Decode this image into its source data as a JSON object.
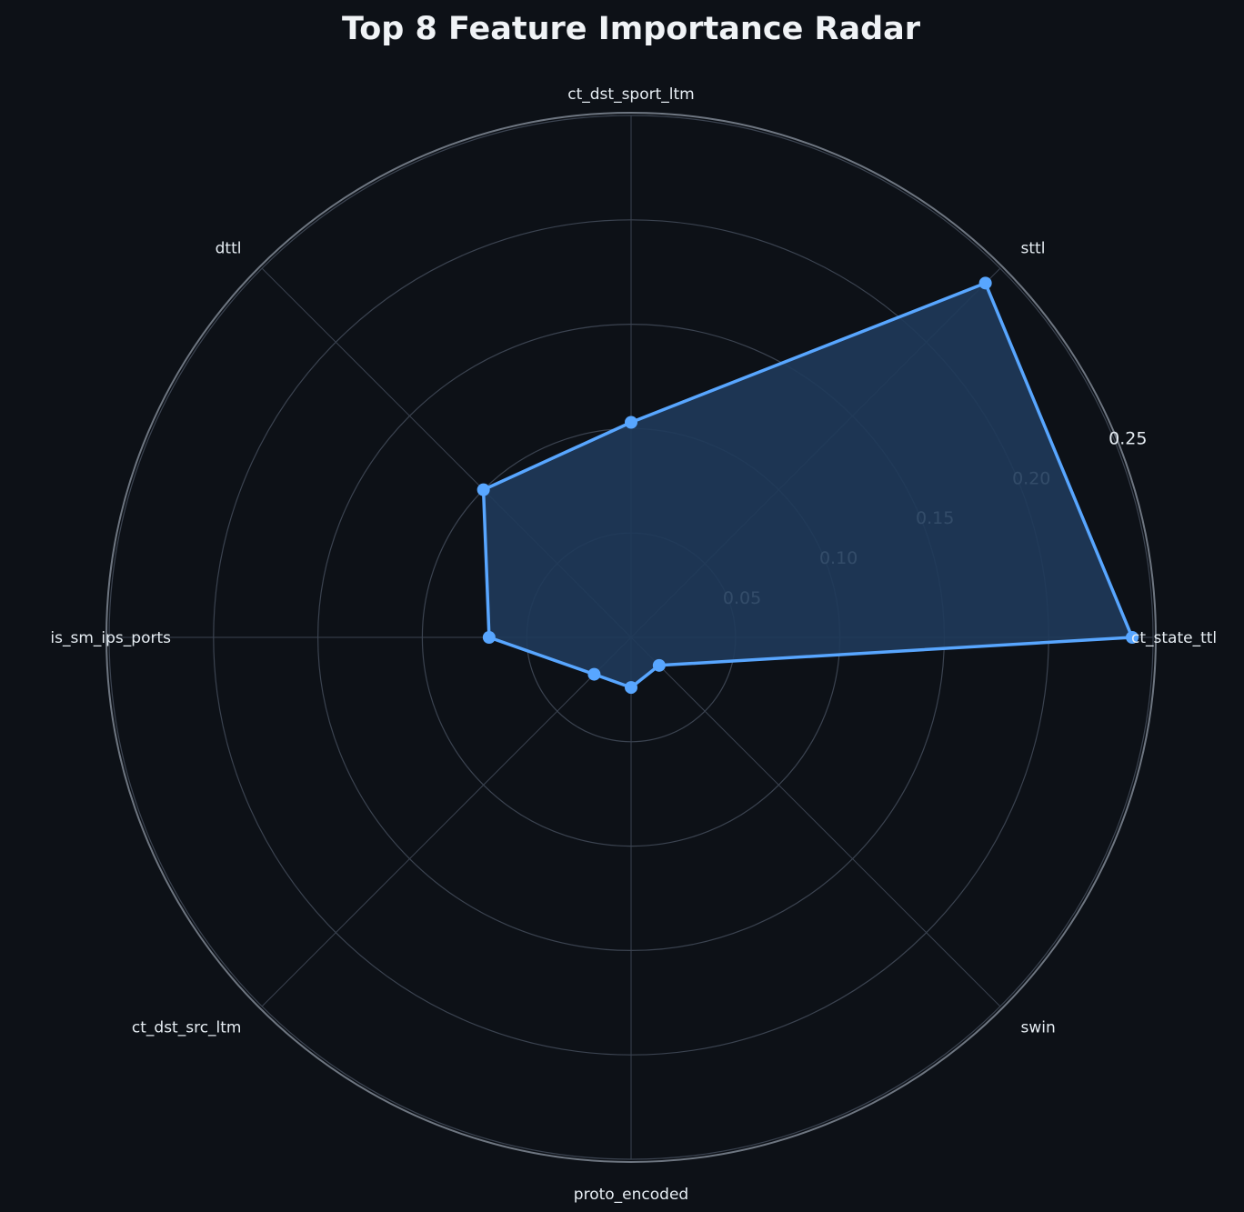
{
  "chart_data": {
    "type": "radar",
    "title": "Top 8 Feature Importance Radar",
    "categories": [
      "ct_state_ttl",
      "sttl",
      "ct_dst_sport_ltm",
      "dttl",
      "is_sm_ips_ports",
      "ct_dst_src_ltm",
      "proto_encoded",
      "swin"
    ],
    "values": [
      0.24,
      0.24,
      0.103,
      0.1,
      0.068,
      0.025,
      0.024,
      0.019
    ],
    "rlim": [
      0,
      0.25
    ],
    "rticks": [
      0.05,
      0.1,
      0.15,
      0.2,
      0.25
    ],
    "rtick_labels": [
      "0.05",
      "0.10",
      "0.15",
      "0.20",
      "0.25"
    ],
    "grid": true
  },
  "colors": {
    "background": "#0d1117",
    "series": "#58a6ff",
    "fill": "#1f3a5a",
    "grid": "#3b4350",
    "outer_ring": "#6e7681",
    "text": "#e6edf3"
  }
}
